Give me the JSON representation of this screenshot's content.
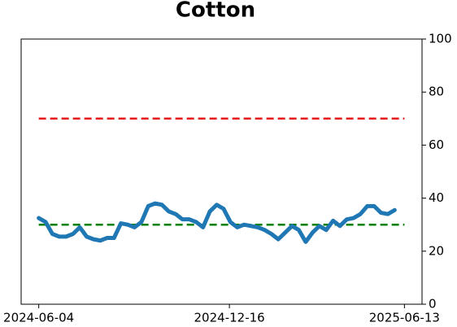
{
  "chart_data": {
    "type": "line",
    "title": "Cotton",
    "x": [
      "2024-06-04",
      "2024-06-11",
      "2024-06-18",
      "2024-06-25",
      "2024-07-02",
      "2024-07-09",
      "2024-07-16",
      "2024-07-23",
      "2024-07-30",
      "2024-08-06",
      "2024-08-13",
      "2024-08-20",
      "2024-08-27",
      "2024-09-03",
      "2024-09-10",
      "2024-09-17",
      "2024-09-24",
      "2024-10-01",
      "2024-10-08",
      "2024-10-15",
      "2024-10-22",
      "2024-10-29",
      "2024-11-05",
      "2024-11-12",
      "2024-11-19",
      "2024-11-26",
      "2024-12-03",
      "2024-12-10",
      "2024-12-17",
      "2024-12-24",
      "2024-12-31",
      "2025-01-07",
      "2025-01-14",
      "2025-01-21",
      "2025-01-28",
      "2025-02-04",
      "2025-02-11",
      "2025-02-18",
      "2025-02-25",
      "2025-03-04",
      "2025-03-11",
      "2025-03-18",
      "2025-03-25",
      "2025-04-01",
      "2025-04-08",
      "2025-04-15",
      "2025-04-22",
      "2025-04-29",
      "2025-05-06",
      "2025-05-13",
      "2025-05-20",
      "2025-05-27",
      "2025-06-03"
    ],
    "series": [
      {
        "color": "#1f77b4",
        "values": [
          32.5,
          31,
          26.5,
          25.5,
          25.5,
          26.5,
          29,
          25.5,
          24.5,
          24,
          25,
          25,
          30.5,
          30,
          29,
          31,
          37,
          38,
          37.5,
          35,
          34,
          32,
          32,
          31,
          29,
          35,
          37.5,
          36,
          31,
          29,
          30,
          29.5,
          29,
          28,
          26.5,
          24.5,
          27,
          29.5,
          28,
          23.5,
          27,
          29.5,
          28,
          31.5,
          29.5,
          32,
          32.5,
          34,
          37,
          37,
          34.5,
          34,
          35.5
        ]
      }
    ],
    "hlines": [
      {
        "value": 70,
        "color": "#e41a1c"
      },
      {
        "value": 30,
        "color": "#008000"
      }
    ],
    "xlim": [
      "2024-05-17",
      "2025-07-01"
    ],
    "xticks": [
      "2024-06-04",
      "2024-12-16",
      "2025-06-13"
    ],
    "ylim": [
      0,
      100
    ],
    "yticks": [
      0,
      20,
      40,
      60,
      80,
      100
    ],
    "y_axis_side": "right"
  }
}
